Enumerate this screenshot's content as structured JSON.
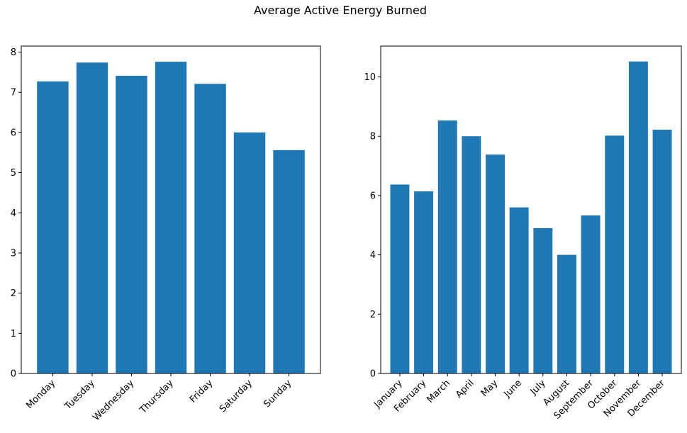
{
  "figure": {
    "title": "Average Active Energy Burned"
  },
  "chart_data": [
    {
      "type": "bar",
      "title": "",
      "xlabel": "",
      "ylabel": "",
      "categories": [
        "Monday",
        "Tuesday",
        "Wednesday",
        "Thursday",
        "Friday",
        "Saturday",
        "Sunday"
      ],
      "values": [
        7.27,
        7.74,
        7.41,
        7.76,
        7.21,
        6.0,
        5.56
      ],
      "ylim": [
        0,
        8.15
      ],
      "yticks": [
        0,
        1,
        2,
        3,
        4,
        5,
        6,
        7,
        8
      ],
      "ytick_labels": [
        "0",
        "1",
        "2",
        "3",
        "4",
        "5",
        "6",
        "7",
        "8"
      ],
      "bar_color": "#1f77b4",
      "grid": false,
      "xtick_rotation": 45
    },
    {
      "type": "bar",
      "title": "",
      "xlabel": "",
      "ylabel": "",
      "categories": [
        "January",
        "February",
        "March",
        "April",
        "May",
        "June",
        "July",
        "August",
        "September",
        "October",
        "November",
        "December"
      ],
      "values": [
        6.37,
        6.14,
        8.53,
        8.0,
        7.38,
        5.6,
        4.9,
        4.0,
        5.33,
        8.02,
        10.52,
        8.22
      ],
      "ylim": [
        0,
        11.04
      ],
      "yticks": [
        0,
        2,
        4,
        6,
        8,
        10
      ],
      "ytick_labels": [
        "0",
        "2",
        "4",
        "6",
        "8",
        "10"
      ],
      "bar_color": "#1f77b4",
      "grid": false,
      "xtick_rotation": 45
    }
  ]
}
